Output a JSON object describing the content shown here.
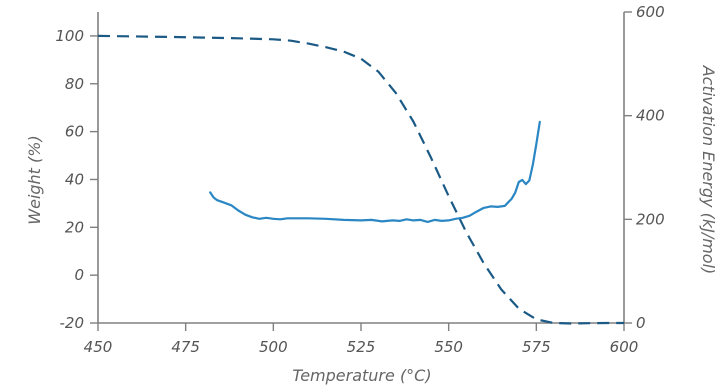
{
  "chart_data": {
    "type": "line",
    "title": "",
    "xlabel": "Temperature (°C)",
    "ylabel_left": "Weight (%)",
    "ylabel_right": "Activation Energy (kJ/mol)",
    "xlim": [
      450,
      600
    ],
    "ylim_left": [
      -20,
      110
    ],
    "ylim_right": [
      0,
      600
    ],
    "x_ticks": [
      450,
      475,
      500,
      525,
      550,
      575,
      600
    ],
    "y_left_ticks": [
      -20,
      0,
      20,
      40,
      60,
      80,
      100
    ],
    "y_right_ticks": [
      0,
      200,
      400,
      600
    ],
    "grid": false,
    "legend": "none",
    "series": [
      {
        "axis": "left",
        "style": "dashed",
        "color": "#1c5a86",
        "points": [
          [
            450,
            100
          ],
          [
            470,
            99.6
          ],
          [
            490,
            99
          ],
          [
            500,
            98.6
          ],
          [
            505,
            98
          ],
          [
            510,
            96.8
          ],
          [
            515,
            95.3
          ],
          [
            520,
            93.5
          ],
          [
            525,
            90.5
          ],
          [
            530,
            85
          ],
          [
            535,
            76
          ],
          [
            540,
            64
          ],
          [
            545,
            49
          ],
          [
            550,
            33
          ],
          [
            555,
            18
          ],
          [
            560,
            5
          ],
          [
            565,
            -6
          ],
          [
            570,
            -14
          ],
          [
            575,
            -18.5
          ],
          [
            580,
            -20
          ],
          [
            585,
            -20.2
          ],
          [
            590,
            -20.1
          ],
          [
            595,
            -20
          ],
          [
            600,
            -20
          ]
        ]
      },
      {
        "axis": "right",
        "style": "solid",
        "color": "#2a87c4",
        "points": [
          [
            482,
            252
          ],
          [
            483,
            242
          ],
          [
            484,
            237
          ],
          [
            486,
            232
          ],
          [
            488,
            227
          ],
          [
            490,
            217
          ],
          [
            492,
            209
          ],
          [
            494,
            204
          ],
          [
            496,
            201
          ],
          [
            498,
            203
          ],
          [
            500,
            201
          ],
          [
            502,
            200
          ],
          [
            504,
            202
          ],
          [
            510,
            202
          ],
          [
            515,
            201
          ],
          [
            520,
            199
          ],
          [
            525,
            198
          ],
          [
            528,
            199
          ],
          [
            531,
            196
          ],
          [
            534,
            198
          ],
          [
            536,
            197
          ],
          [
            538,
            200
          ],
          [
            540,
            198
          ],
          [
            542,
            199
          ],
          [
            544,
            195
          ],
          [
            546,
            199
          ],
          [
            548,
            197
          ],
          [
            550,
            198
          ],
          [
            552,
            201
          ],
          [
            554,
            203
          ],
          [
            556,
            207
          ],
          [
            558,
            215
          ],
          [
            560,
            222
          ],
          [
            562,
            225
          ],
          [
            564,
            224
          ],
          [
            566,
            226
          ],
          [
            568,
            240
          ],
          [
            569,
            252
          ],
          [
            570,
            272
          ],
          [
            571,
            276
          ],
          [
            572,
            268
          ],
          [
            573,
            275
          ],
          [
            574,
            305
          ],
          [
            575,
            345
          ],
          [
            576,
            388
          ]
        ]
      }
    ]
  }
}
